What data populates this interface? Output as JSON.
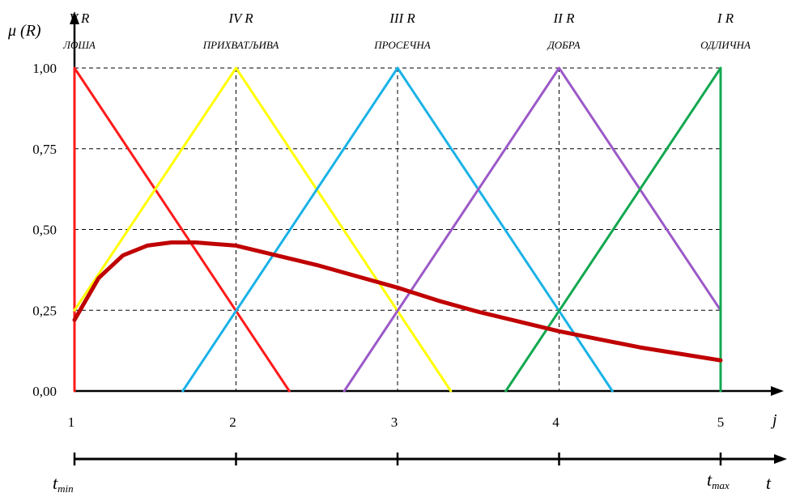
{
  "chart_data": {
    "type": "line",
    "ylabel": "μ (R)",
    "xlabel": "j",
    "ylim": [
      0,
      1
    ],
    "xlim": [
      1,
      5
    ],
    "grid": true,
    "y_ticks": [
      "0,00",
      "0,25",
      "0,50",
      "0,75",
      "1,00"
    ],
    "x_ticks": [
      "1",
      "2",
      "3",
      "4",
      "5"
    ],
    "categories": [
      {
        "rank": "V R",
        "name": "ЛОША",
        "x": 1
      },
      {
        "rank": "IV R",
        "name": "ПРИХВАТЉИВА",
        "x": 2
      },
      {
        "rank": "III R",
        "name": "ПРОСЕЧНА",
        "x": 3
      },
      {
        "rank": "II R",
        "name": "ДОБРА",
        "x": 4
      },
      {
        "rank": "I R",
        "name": "ОДЛИЧНА",
        "x": 5
      }
    ],
    "series": [
      {
        "color": "#ff1a1a",
        "x": [
          1,
          1,
          2.33
        ],
        "y": [
          0,
          1,
          0
        ]
      },
      {
        "color": "#ffff00",
        "x": [
          1,
          2,
          3.33
        ],
        "y": [
          0.25,
          1,
          0
        ]
      },
      {
        "color": "#1ab2e8",
        "x": [
          1.67,
          3,
          4.33
        ],
        "y": [
          0,
          1,
          0
        ]
      },
      {
        "color": "#9b59c8",
        "x": [
          2.67,
          4,
          5
        ],
        "y": [
          0,
          1,
          0.25
        ]
      },
      {
        "color": "#13a850",
        "x": [
          3.67,
          5,
          5
        ],
        "y": [
          0,
          1,
          0
        ]
      },
      {
        "color": "#c00000",
        "x": [
          1,
          1.15,
          1.3,
          1.45,
          1.6,
          1.75,
          2,
          2.25,
          2.5,
          2.75,
          3,
          3.25,
          3.5,
          3.75,
          4,
          4.25,
          4.5,
          4.75,
          5
        ],
        "y": [
          0.22,
          0.35,
          0.42,
          0.45,
          0.46,
          0.46,
          0.45,
          0.42,
          0.39,
          0.355,
          0.32,
          0.28,
          0.245,
          0.215,
          0.185,
          0.16,
          0.135,
          0.115,
          0.095
        ]
      }
    ],
    "time_axis": {
      "label": "t",
      "start_label": "t",
      "start_sub": "min",
      "end_label": "t",
      "end_sub": "max"
    }
  }
}
